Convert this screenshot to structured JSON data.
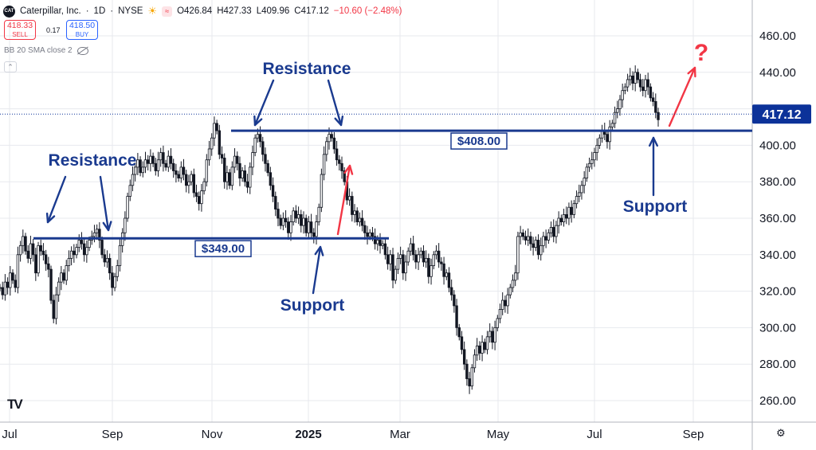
{
  "header": {
    "symbol": "Caterpillar, Inc.",
    "interval": "1D",
    "exchange": "NYSE",
    "open": "O426.84",
    "high": "H427.33",
    "low": "L409.96",
    "close": "C417.12",
    "change": "−10.60 (−2.48%)"
  },
  "trade": {
    "sell_price": "418.33",
    "sell_label": "SELL",
    "buy_price": "418.50",
    "buy_label": "BUY",
    "spread": "0.17"
  },
  "indicator": {
    "label": "BB 20 SMA close 2"
  },
  "colors": {
    "up": "#131722",
    "down": "#131722",
    "annotation": "#1a3a8f",
    "arrow_red": "#f23645",
    "price_tag": "#0c3299",
    "grid": "#e7e9ee"
  },
  "chart_data": {
    "type": "candlestick",
    "x_axis": {
      "ticks": [
        "Jul",
        "Sep",
        "Nov",
        "2025",
        "Mar",
        "May",
        "Jul",
        "Sep"
      ],
      "bold_tick": "2025"
    },
    "y_axis": {
      "min": 250,
      "max": 475,
      "ticks": [
        "460.00",
        "440.00",
        "420.00",
        "400.00",
        "380.00",
        "360.00",
        "340.00",
        "320.00",
        "300.00",
        "280.00",
        "260.00"
      ]
    },
    "last_price": "417.12",
    "ohlc_path": [
      322,
      318,
      325,
      322,
      330,
      326,
      322,
      340,
      345,
      350,
      342,
      338,
      346,
      340,
      330,
      345,
      342,
      340,
      335,
      332,
      315,
      305,
      318,
      325,
      330,
      326,
      334,
      338,
      342,
      340,
      344,
      348,
      346,
      340,
      344,
      348,
      350,
      352,
      354,
      348,
      340,
      336,
      338,
      330,
      322,
      328,
      334,
      345,
      352,
      360,
      372,
      378,
      384,
      388,
      392,
      385,
      388,
      392,
      390,
      394,
      390,
      386,
      392,
      396,
      390,
      388,
      394,
      390,
      386,
      384,
      382,
      388,
      384,
      378,
      380,
      384,
      374,
      372,
      368,
      375,
      380,
      392,
      398,
      404,
      412,
      408,
      395,
      393,
      380,
      385,
      378,
      388,
      394,
      390,
      382,
      386,
      380,
      377,
      388,
      396,
      404,
      406,
      402,
      395,
      390,
      385,
      378,
      372,
      365,
      360,
      356,
      360,
      358,
      352,
      358,
      364,
      360,
      362,
      356,
      360,
      352,
      358,
      352,
      350,
      358,
      366,
      384,
      395,
      402,
      406,
      404,
      398,
      392,
      390,
      386,
      380,
      370,
      372,
      362,
      364,
      358,
      360,
      356,
      352,
      350,
      352,
      350,
      346,
      348,
      345,
      346,
      340,
      335,
      340,
      326,
      332,
      338,
      340,
      330,
      336,
      342,
      346,
      340,
      336,
      340,
      342,
      336,
      338,
      328,
      334,
      340,
      342,
      336,
      335,
      328,
      330,
      322,
      318,
      312,
      300,
      295,
      288,
      280,
      272,
      268,
      278,
      285,
      290,
      286,
      292,
      288,
      295,
      298,
      292,
      300,
      305,
      310,
      315,
      312,
      318,
      322,
      326,
      330,
      350,
      352,
      350,
      348,
      350,
      346,
      344,
      348,
      340,
      345,
      350,
      348,
      352,
      355,
      350,
      356,
      360,
      358,
      362,
      360,
      366,
      362,
      368,
      372,
      374,
      378,
      382,
      388,
      390,
      392,
      396,
      400,
      404,
      408,
      406,
      402,
      410,
      412,
      418,
      420,
      425,
      430,
      432,
      436,
      438,
      434,
      440,
      436,
      432,
      430,
      436,
      432,
      426,
      424,
      418,
      414
    ],
    "levels": [
      {
        "price": 408,
        "label": "$408.00",
        "from_index": 132,
        "to_index": 275
      },
      {
        "price": 349,
        "label": "$349.00",
        "from_index": 13,
        "to_index": 150
      }
    ],
    "annotations": [
      {
        "text": "Resistance",
        "near": "349 level, left"
      },
      {
        "text": "Resistance",
        "near": "408 level, top"
      },
      {
        "text": "Support",
        "near": "349 level, 2025"
      },
      {
        "text": "Support",
        "near": "408 level, right"
      },
      {
        "text": "?",
        "near": "upper right, red arrow"
      }
    ]
  }
}
